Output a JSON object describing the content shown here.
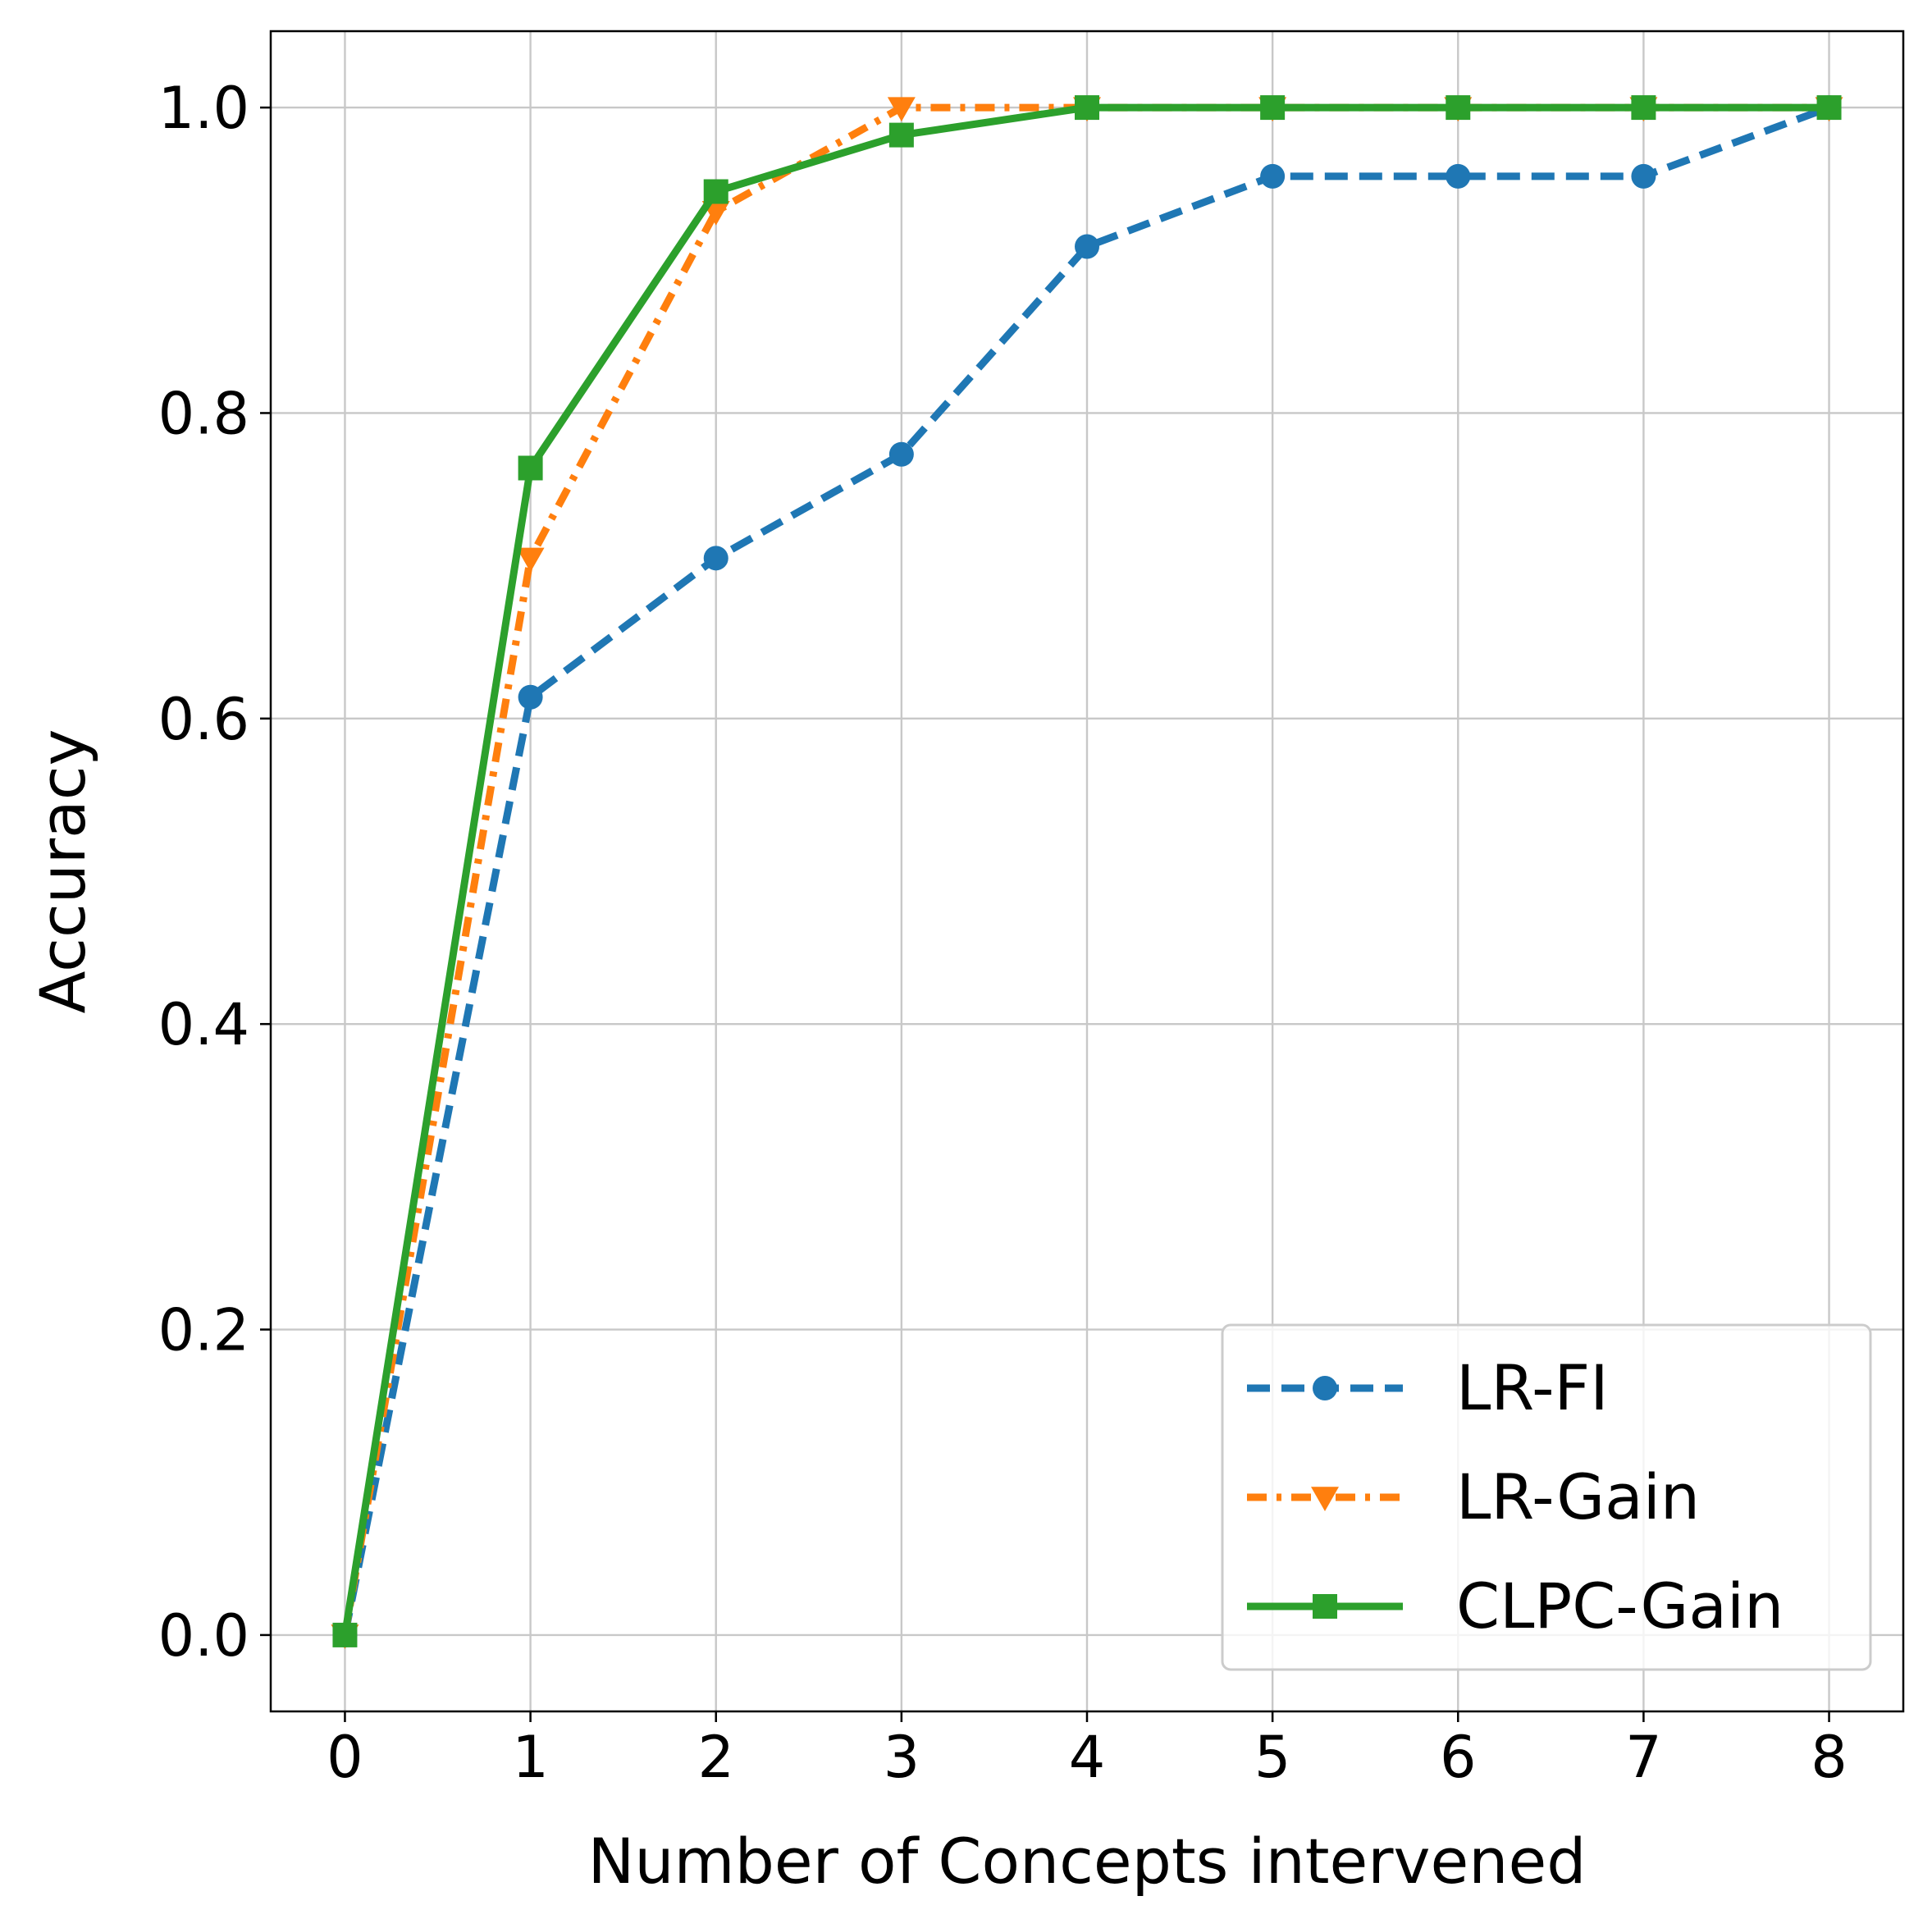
{
  "chart_data": {
    "type": "line",
    "title": "",
    "xlabel": "Number of Concepts intervened",
    "ylabel": "Accuracy",
    "xlim": [
      -0.4,
      8.4
    ],
    "ylim": [
      -0.05,
      1.05
    ],
    "xticks": [
      0,
      1,
      2,
      3,
      4,
      5,
      6,
      7,
      8
    ],
    "xtick_labels": [
      "0",
      "1",
      "2",
      "3",
      "4",
      "5",
      "6",
      "7",
      "8"
    ],
    "yticks": [
      0.0,
      0.2,
      0.4,
      0.6,
      0.8,
      1.0
    ],
    "ytick_labels": [
      "0.0",
      "0.2",
      "0.4",
      "0.6",
      "0.8",
      "1.0"
    ],
    "grid": true,
    "legend_position": "lower-right",
    "x": [
      0,
      1,
      2,
      3,
      4,
      5,
      6,
      7,
      8
    ],
    "series": [
      {
        "name": "LR-FI",
        "values": [
          0.0,
          0.614,
          0.705,
          0.773,
          0.909,
          0.955,
          0.955,
          0.955,
          1.0
        ],
        "color": "#1f77b4",
        "line_style": "dashed",
        "marker": "circle"
      },
      {
        "name": "LR-Gain",
        "values": [
          0.0,
          0.705,
          0.932,
          1.0,
          1.0,
          1.0,
          1.0,
          1.0,
          1.0
        ],
        "color": "#ff7f0e",
        "line_style": "dashdot",
        "marker": "triangle-down"
      },
      {
        "name": "CLPC-Gain",
        "values": [
          0.0,
          0.764,
          0.945,
          0.982,
          1.0,
          1.0,
          1.0,
          1.0,
          1.0
        ],
        "color": "#2ca02c",
        "line_style": "solid",
        "marker": "square"
      }
    ]
  }
}
